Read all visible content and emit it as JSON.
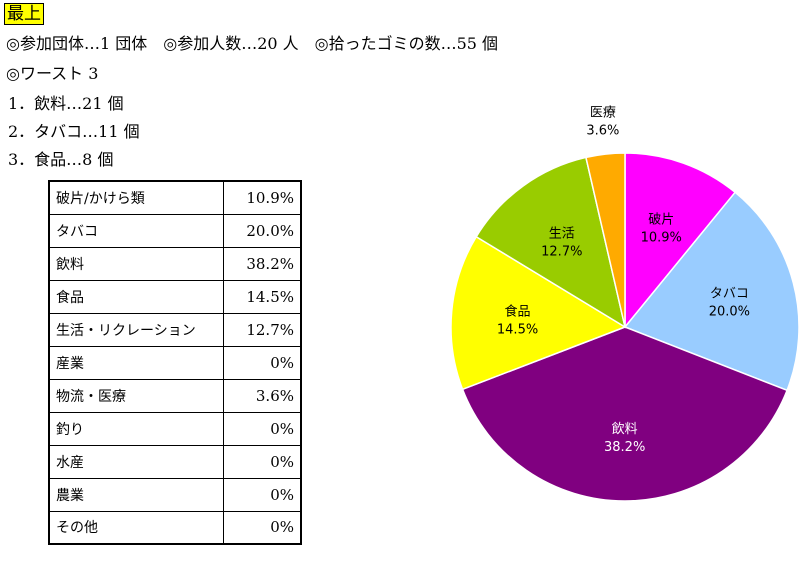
{
  "header": {
    "badge": "最上",
    "line1": "◎参加団体…1 団体　◎参加人数…20 人　◎拾ったゴミの数…55 個",
    "worst_title": "◎ワースト 3",
    "worst_items": [
      "1．飲料…21 個",
      "2．タバコ…11 個",
      "3．食品…8 個"
    ]
  },
  "table": {
    "rows": [
      {
        "category": "破片/かけら類",
        "value": "10.9%"
      },
      {
        "category": "タバコ",
        "value": "20.0%"
      },
      {
        "category": "飲料",
        "value": "38.2%"
      },
      {
        "category": "食品",
        "value": "14.5%"
      },
      {
        "category": "生活・リクレーション",
        "value": "12.7%"
      },
      {
        "category": "産業",
        "value": "0%"
      },
      {
        "category": "物流・医療",
        "value": "3.6%"
      },
      {
        "category": "釣り",
        "value": "0%"
      },
      {
        "category": "水産",
        "value": "0%"
      },
      {
        "category": "農業",
        "value": "0%"
      },
      {
        "category": "その他",
        "value": "0%"
      }
    ]
  },
  "chart_data": {
    "type": "pie",
    "slices": [
      {
        "label": "破片",
        "value": 10.9,
        "value_label": "10.9%",
        "color": "#ff00ff"
      },
      {
        "label": "タバコ",
        "value": 20.0,
        "value_label": "20.0%",
        "color": "#99ccff"
      },
      {
        "label": "飲料",
        "value": 38.2,
        "value_label": "38.2%",
        "color": "#800080"
      },
      {
        "label": "食品",
        "value": 14.5,
        "value_label": "14.5%",
        "color": "#ffff00"
      },
      {
        "label": "生活",
        "value": 12.7,
        "value_label": "12.7%",
        "color": "#99cc00"
      },
      {
        "label": "医療",
        "value": 3.6,
        "value_label": "3.6%",
        "color": "#ffaa00"
      }
    ],
    "start": "12 o'clock",
    "direction": "clockwise",
    "label_colors": {
      "dark_slice": "#ffffff",
      "default": "#000000"
    }
  }
}
